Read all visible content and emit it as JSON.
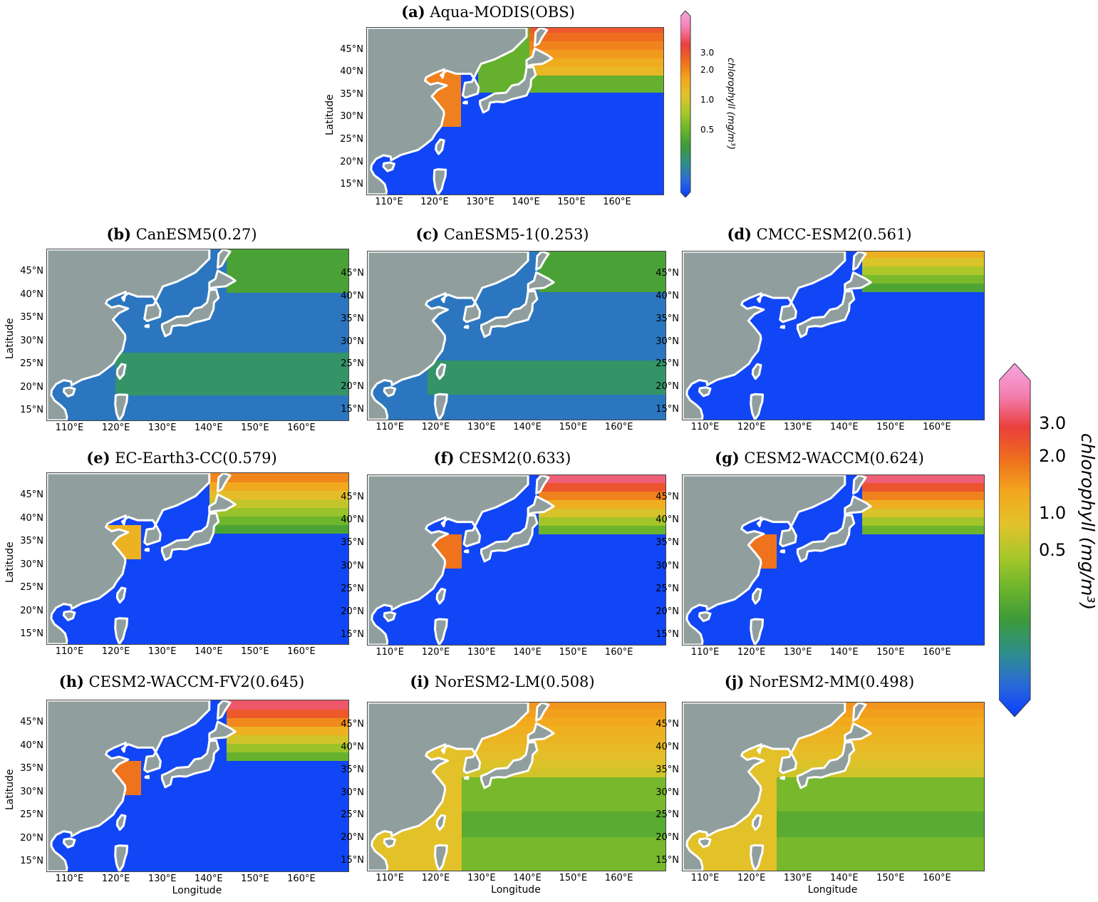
{
  "axis": {
    "ylabel": "Latitude",
    "xlabel": "Longitude",
    "lat_ticks": [
      "45°N",
      "40°N",
      "35°N",
      "30°N",
      "25°N",
      "20°N",
      "15°N"
    ],
    "lon_ticks": [
      "110°E",
      "120°E",
      "130°E",
      "140°E",
      "150°E",
      "160°E"
    ]
  },
  "colorbar": {
    "label": "chlorophyll (mg/m³)",
    "ticks": [
      "3.0",
      "2.0",
      "1.0",
      "0.5"
    ],
    "colors": [
      "#0a3cff",
      "#2a6ad8",
      "#2e8f8a",
      "#3c9a3a",
      "#6cb52c",
      "#a9c72a",
      "#e2c22a",
      "#f3a71d",
      "#ef6f1d",
      "#ea3f3c",
      "#f37fb0",
      "#f5a6e0"
    ]
  },
  "panels": [
    {
      "letter": "(a)",
      "name": " Aqua-MODIS(OBS)",
      "style": "obs"
    },
    {
      "letter": "(b)",
      "name": " CanESM5(0.27)",
      "style": "low"
    },
    {
      "letter": "(c)",
      "name": " CanESM5-1(0.253)",
      "style": "low"
    },
    {
      "letter": "(d)",
      "name": " CMCC-ESM2(0.561)",
      "style": "cmcc"
    },
    {
      "letter": "(e)",
      "name": " EC-Earth3-CC(0.579)",
      "style": "ec"
    },
    {
      "letter": "(f)",
      "name": " CESM2(0.633)",
      "style": "cesm"
    },
    {
      "letter": "(g)",
      "name": " CESM2-WACCM(0.624)",
      "style": "cesm"
    },
    {
      "letter": "(h)",
      "name": " CESM2-WACCM-FV2(0.645)",
      "style": "cesm"
    },
    {
      "letter": "(i)",
      "name": " NorESM2-LM(0.508)",
      "style": "nor"
    },
    {
      "letter": "(j)",
      "name": " NorESM2-MM(0.498)",
      "style": "nor"
    }
  ]
}
